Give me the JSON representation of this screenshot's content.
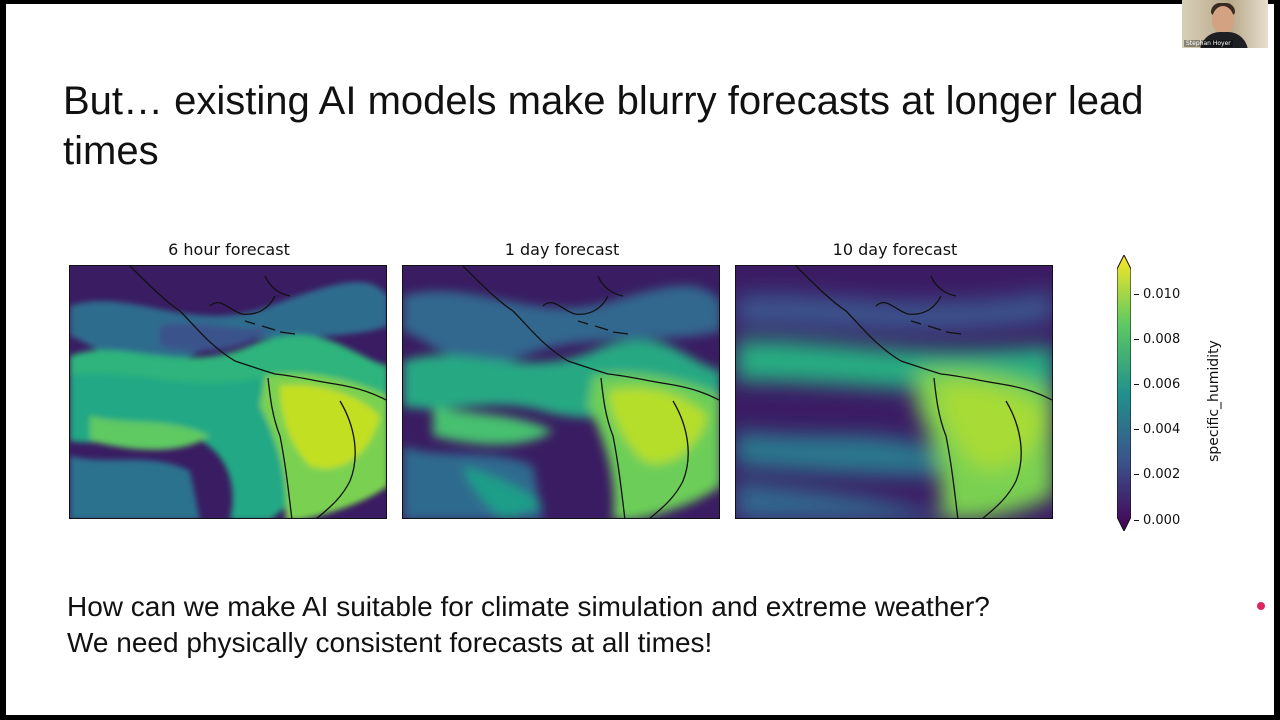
{
  "slide": {
    "title": "But… existing AI models make blurry forecasts at longer lead times",
    "lines": [
      "How can we make AI suitable for climate simulation and extreme weather?",
      "We need physically consistent forecasts at all times!"
    ]
  },
  "figure": {
    "panels": [
      {
        "title": "6 hour forecast"
      },
      {
        "title": "1 day forecast"
      },
      {
        "title": "10 day forecast"
      }
    ],
    "colorbar": {
      "label": "specific_humidity",
      "ticks": [
        "0.010",
        "0.008",
        "0.006",
        "0.004",
        "0.002",
        "0.000"
      ],
      "colormap": [
        "#440154",
        "#3b528b",
        "#21918c",
        "#5ec962",
        "#fde725"
      ]
    }
  },
  "webcam": {
    "name": "Stephan Hoyer"
  }
}
